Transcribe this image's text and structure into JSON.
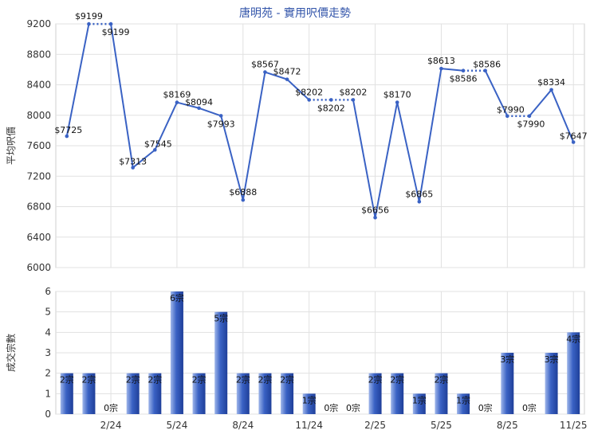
{
  "title": "唐明苑 - 實用呎價走勢",
  "colors": {
    "line": "#3a62c4",
    "bar_light": "#9fb6ea",
    "bar_dark": "#1f3f99",
    "grid": "#e1e1e1"
  },
  "chart_data": [
    {
      "type": "line",
      "title": "唐明苑 - 實用呎價走勢",
      "ylabel": "平均呎價",
      "ylim": [
        6000,
        9200
      ],
      "yticks": [
        "6000",
        "6400",
        "6800",
        "7200",
        "7600",
        "8000",
        "8400",
        "8800",
        "9200"
      ],
      "grid": true,
      "x": [
        0,
        1,
        2,
        3,
        4,
        5,
        6,
        7,
        8,
        9,
        10,
        11,
        12,
        13,
        14,
        15,
        16,
        17,
        18,
        19,
        20,
        21,
        22,
        23
      ],
      "values": [
        7725,
        9199,
        9199,
        7313,
        7545,
        8169,
        8094,
        7993,
        6888,
        8567,
        8472,
        8202,
        8202,
        8202,
        6656,
        8170,
        6865,
        8613,
        8586,
        8586,
        7990,
        7990,
        8334,
        7647
      ],
      "labels": [
        "$7725",
        "$9199",
        "$9199",
        "$7313",
        "$7545",
        "$8169",
        "$8094",
        "$7993",
        "$6888",
        "$8567",
        "$8472",
        "$8202",
        "$8202",
        "$8202",
        "$6656",
        "$8170",
        "$6865",
        "$8613",
        "$8586",
        "$8586",
        "$7990",
        "$7990",
        "$8334",
        "$7647"
      ],
      "dotted_after": [
        1,
        11,
        12,
        18,
        20
      ]
    },
    {
      "type": "bar",
      "ylabel": "成交宗數",
      "ylim": [
        0,
        6
      ],
      "yticks": [
        "0",
        "1",
        "2",
        "3",
        "4",
        "5",
        "6"
      ],
      "grid": true,
      "x": [
        0,
        1,
        2,
        3,
        4,
        5,
        6,
        7,
        8,
        9,
        10,
        11,
        12,
        13,
        14,
        15,
        16,
        17,
        18,
        19,
        20,
        21,
        22,
        23
      ],
      "values": [
        2,
        2,
        0,
        2,
        2,
        6,
        2,
        5,
        2,
        2,
        2,
        1,
        0,
        0,
        2,
        2,
        1,
        2,
        1,
        0,
        3,
        0,
        3,
        4
      ],
      "labels": [
        "2宗",
        "2宗",
        "0宗",
        "2宗",
        "2宗",
        "6宗",
        "2宗",
        "5宗",
        "2宗",
        "2宗",
        "2宗",
        "1宗",
        "0宗",
        "0宗",
        "2宗",
        "2宗",
        "1宗",
        "2宗",
        "1宗",
        "0宗",
        "3宗",
        "0宗",
        "3宗",
        "4宗"
      ],
      "xtick_index": [
        2,
        5,
        8,
        11,
        14,
        17,
        20,
        23
      ],
      "xtick_labels": [
        "2/24",
        "5/24",
        "8/24",
        "11/24",
        "2/25",
        "5/25",
        "8/25",
        "11/25"
      ]
    }
  ]
}
